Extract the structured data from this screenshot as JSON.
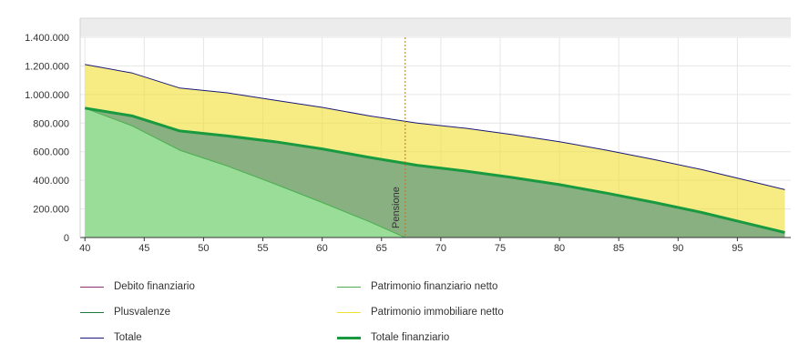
{
  "chart_data": {
    "type": "area",
    "x_ticks": [
      40,
      45,
      50,
      55,
      60,
      65,
      70,
      75,
      80,
      85,
      90,
      95
    ],
    "y_ticks": [
      "0",
      "200.000",
      "400.000",
      "600.000",
      "800.000",
      "1.000.000",
      "1.200.000",
      "1.400.000"
    ],
    "xlim": [
      39.6,
      99.5
    ],
    "ylim": [
      0,
      1400000
    ],
    "annotation": {
      "label": "Pensione",
      "x": 67,
      "color": "#b07a2a"
    },
    "series": [
      {
        "name": "Debito finanziario",
        "color": "#8b2f6e",
        "x": [
          40,
          99
        ],
        "values": [
          0,
          0
        ]
      },
      {
        "name": "Patrimonio finanziario netto",
        "color": "#4caf50",
        "x": [
          40,
          44,
          48,
          52,
          56,
          60,
          64,
          67,
          69
        ],
        "values": [
          905000,
          780000,
          610000,
          500000,
          375000,
          245000,
          110000,
          0,
          0
        ]
      },
      {
        "name": "Plusvalenze",
        "color": "#1e7a3a",
        "x": [
          40,
          44,
          48,
          52,
          56,
          60,
          64,
          68,
          72,
          76,
          80,
          84,
          88,
          92,
          96,
          99
        ],
        "values": [
          905000,
          850000,
          745000,
          710000,
          670000,
          620000,
          560000,
          505000,
          465000,
          420000,
          370000,
          310000,
          245000,
          175000,
          95000,
          35000
        ]
      },
      {
        "name": "Patrimonio immobiliare netto",
        "color": "#f0e030",
        "x": [
          40,
          44,
          48,
          52,
          56,
          60,
          64,
          68,
          72,
          76,
          80,
          84,
          88,
          92,
          96,
          99
        ],
        "values": [
          305000,
          300000,
          300000,
          302000,
          290000,
          290000,
          290000,
          295000,
          300000,
          300000,
          300000,
          300000,
          300000,
          300000,
          300000,
          300000
        ]
      },
      {
        "name": "Totale",
        "color": "#1a1a7a",
        "x": [
          40,
          44,
          48,
          52,
          56,
          60,
          64,
          68,
          72,
          76,
          80,
          84,
          88,
          92,
          96,
          99
        ],
        "values": [
          1210000,
          1150000,
          1045000,
          1012000,
          960000,
          910000,
          850000,
          800000,
          765000,
          720000,
          670000,
          610000,
          545000,
          475000,
          395000,
          335000
        ]
      },
      {
        "name": "Totale finanziario",
        "color": "#1a9a40",
        "x": [
          40,
          44,
          48,
          52,
          56,
          60,
          64,
          68,
          72,
          76,
          80,
          84,
          88,
          92,
          96,
          99
        ],
        "values": [
          905000,
          850000,
          745000,
          710000,
          670000,
          620000,
          560000,
          505000,
          465000,
          420000,
          370000,
          310000,
          245000,
          175000,
          95000,
          35000
        ]
      }
    ],
    "legend": [
      {
        "label": "Debito finanziario",
        "color": "#8b2f6e",
        "weight": "thin"
      },
      {
        "label": "Patrimonio finanziario netto",
        "color": "#4caf50",
        "weight": "thin"
      },
      {
        "label": "Plusvalenze",
        "color": "#1e7a3a",
        "weight": "thin"
      },
      {
        "label": "Patrimonio immobiliare netto",
        "color": "#f0e030",
        "weight": "thin"
      },
      {
        "label": "Totale",
        "color": "#1a1a7a",
        "weight": "thin"
      },
      {
        "label": "Totale finanziario",
        "color": "#1a9a40",
        "weight": "thick"
      }
    ],
    "legend_placement": "bottom",
    "grid": true
  }
}
